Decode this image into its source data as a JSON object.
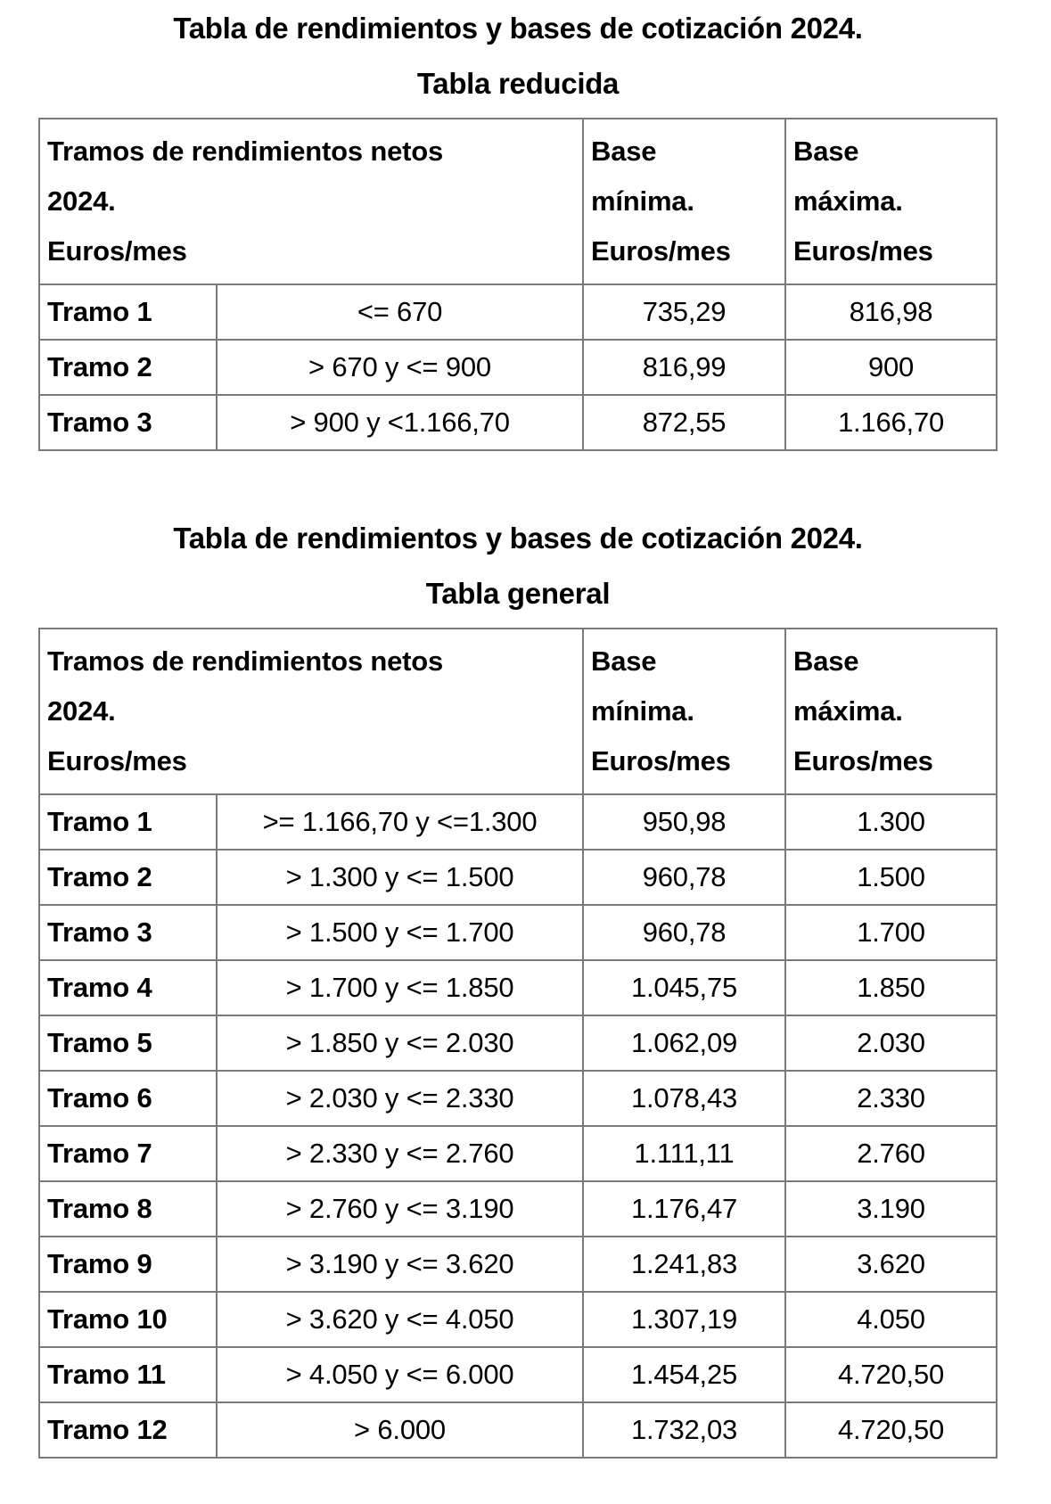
{
  "colors": {
    "background": "#ffffff",
    "text": "#000000",
    "table_border": "#7a7a7a"
  },
  "sections": [
    {
      "title": "Tabla de rendimientos y bases de cotización 2024.",
      "subtitle": "Tabla reducida",
      "header": {
        "tramos": [
          "Tramos de rendimientos netos",
          "2024.",
          "Euros/mes"
        ],
        "base_minima": [
          "Base",
          "mínima.",
          "Euros/mes"
        ],
        "base_maxima": [
          "Base",
          "máxima.",
          "Euros/mes"
        ]
      },
      "rows": [
        [
          "Tramo 1",
          "<= 670",
          "735,29",
          "816,98"
        ],
        [
          "Tramo 2",
          "> 670 y <= 900",
          "816,99",
          "900"
        ],
        [
          "Tramo 3",
          "> 900 y <1.166,70",
          "872,55",
          "1.166,70"
        ]
      ]
    },
    {
      "title": "Tabla de rendimientos y bases de cotización 2024.",
      "subtitle": "Tabla general",
      "header": {
        "tramos": [
          "Tramos de rendimientos netos",
          "2024.",
          "Euros/mes"
        ],
        "base_minima": [
          "Base",
          "mínima.",
          "Euros/mes"
        ],
        "base_maxima": [
          "Base",
          "máxima.",
          "Euros/mes"
        ]
      },
      "rows": [
        [
          "Tramo 1",
          ">= 1.166,70 y <=1.300",
          "950,98",
          "1.300"
        ],
        [
          "Tramo 2",
          "> 1.300 y <= 1.500",
          "960,78",
          "1.500"
        ],
        [
          "Tramo 3",
          "> 1.500 y <= 1.700",
          "960,78",
          "1.700"
        ],
        [
          "Tramo 4",
          "> 1.700 y <= 1.850",
          "1.045,75",
          "1.850"
        ],
        [
          "Tramo 5",
          "> 1.850 y <= 2.030",
          "1.062,09",
          "2.030"
        ],
        [
          "Tramo 6",
          "> 2.030 y <= 2.330",
          "1.078,43",
          "2.330"
        ],
        [
          "Tramo 7",
          "> 2.330 y <= 2.760",
          "1.111,11",
          "2.760"
        ],
        [
          "Tramo 8",
          "> 2.760 y <= 3.190",
          "1.176,47",
          "3.190"
        ],
        [
          "Tramo 9",
          "> 3.190 y <= 3.620",
          "1.241,83",
          "3.620"
        ],
        [
          "Tramo 10",
          "> 3.620 y <= 4.050",
          "1.307,19",
          "4.050"
        ],
        [
          "Tramo 11",
          "> 4.050 y <= 6.000",
          "1.454,25",
          "4.720,50"
        ],
        [
          "Tramo 12",
          "> 6.000",
          "1.732,03",
          "4.720,50"
        ]
      ]
    }
  ]
}
